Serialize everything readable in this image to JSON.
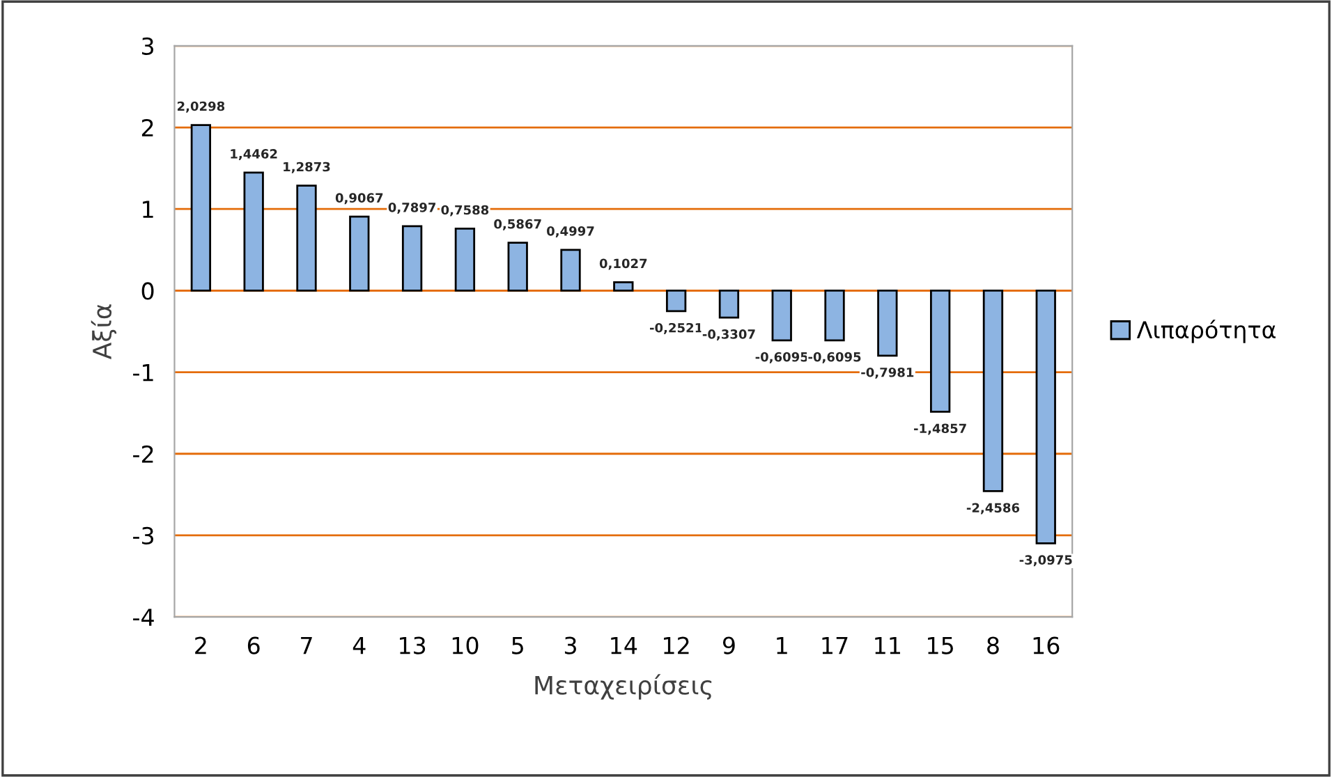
{
  "chart_data": {
    "type": "bar",
    "xlabel": "Μεταχειρίσεις",
    "ylabel": "Αξία",
    "categories": [
      "2",
      "6",
      "7",
      "4",
      "13",
      "10",
      "5",
      "3",
      "14",
      "12",
      "9",
      "1",
      "17",
      "11",
      "15",
      "8",
      "16"
    ],
    "series": [
      {
        "name": "Λιπαρότητα",
        "color": "#8db4e2",
        "values": [
          2.0298,
          1.4462,
          1.2873,
          0.9067,
          0.7897,
          0.7588,
          0.5867,
          0.4997,
          0.1027,
          -0.2521,
          -0.3307,
          -0.6095,
          -0.6095,
          -0.7981,
          -1.4857,
          -2.4586,
          -3.0975
        ],
        "value_labels": [
          "2,0298",
          "1,4462",
          "1,2873",
          "0,9067",
          "0,7897",
          "0,7588",
          "0,5867",
          "0,4997",
          "0,1027",
          "-0,2521",
          "-0,3307",
          "-0,6095",
          "-0,6095",
          "-0,7981",
          "-1,4857",
          "-2,4586",
          "-3,0975"
        ]
      }
    ],
    "ylim": [
      -4,
      3
    ],
    "yticks": [
      -4,
      -3,
      -2,
      -1,
      0,
      1,
      2,
      3
    ],
    "grid": "y",
    "legend": "right"
  }
}
